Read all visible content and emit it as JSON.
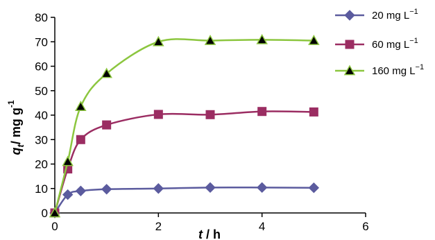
{
  "chart_data": {
    "type": "line",
    "xlabel": {
      "var": "t",
      "sep": " / ",
      "unit": "h"
    },
    "ylabel": {
      "var": "q",
      "sub": "t",
      "sep": "/ ",
      "unit": "mg g",
      "sup": "-1"
    },
    "xlim": [
      0,
      6
    ],
    "ylim": [
      0,
      80
    ],
    "xticks": [
      0,
      2,
      4,
      6
    ],
    "yticks": [
      0,
      10,
      20,
      30,
      40,
      50,
      60,
      70,
      80
    ],
    "grid": false,
    "legend": "top-right",
    "series": [
      {
        "name": "20 mg  L",
        "name_sup": "−1",
        "color": "#5b5b9e",
        "marker": "diamond",
        "x": [
          0,
          0.25,
          0.5,
          1,
          2,
          3,
          4,
          5
        ],
        "y": [
          0,
          7.5,
          9,
          9.7,
          10,
          10.4,
          10.4,
          10.3
        ]
      },
      {
        "name": "60 mg  L",
        "name_sup": "−1",
        "color": "#9b2d62",
        "marker": "square",
        "x": [
          0,
          0.25,
          0.5,
          1,
          2,
          3,
          4,
          5
        ],
        "y": [
          0,
          18,
          30,
          36,
          40.3,
          40.2,
          41.5,
          41.3
        ]
      },
      {
        "name": "160 mg  L",
        "name_sup": "−1",
        "color": "#8cc63f",
        "marker": "triangle",
        "x": [
          0,
          0.25,
          0.5,
          1,
          2,
          3,
          4,
          5
        ],
        "y": [
          0,
          21,
          43.5,
          57,
          70,
          70.5,
          70.8,
          70.5
        ]
      }
    ]
  }
}
